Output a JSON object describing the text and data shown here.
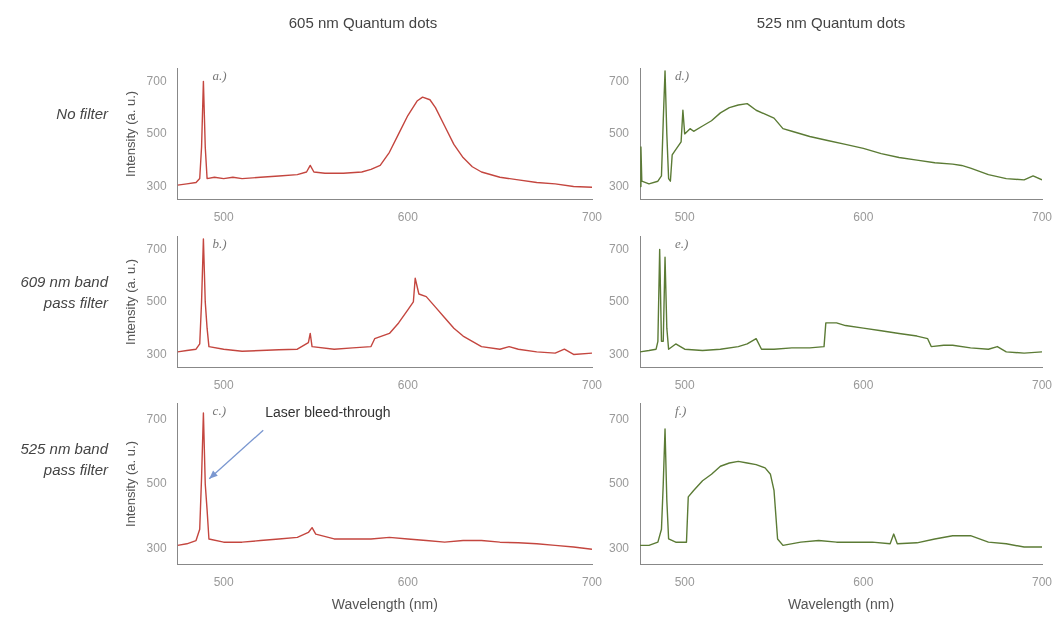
{
  "chart_data": [
    {
      "type": "line",
      "title": "605 nm Quantum dots",
      "subtitle": "No filter",
      "ylabel": "Intensity (a. u.)",
      "color": "#c4463f",
      "marker": "none",
      "grid": false,
      "legend": false,
      "annotations": [
        "a.)"
      ],
      "xlim": [
        475,
        700
      ],
      "xticks": [
        500,
        600,
        700
      ],
      "ylim": [
        250,
        750
      ],
      "yticks": [
        300,
        500,
        700
      ],
      "x": [
        475,
        480,
        485,
        487,
        488,
        489,
        490,
        491,
        495,
        500,
        505,
        510,
        520,
        530,
        540,
        545,
        547,
        549,
        555,
        565,
        575,
        580,
        585,
        590,
        595,
        600,
        605,
        608,
        612,
        615,
        620,
        625,
        630,
        635,
        640,
        650,
        660,
        670,
        680,
        690,
        700
      ],
      "values": [
        305,
        310,
        315,
        330,
        450,
        700,
        450,
        330,
        335,
        330,
        335,
        330,
        335,
        340,
        345,
        355,
        380,
        355,
        350,
        350,
        355,
        365,
        380,
        430,
        500,
        570,
        625,
        640,
        630,
        600,
        530,
        460,
        410,
        375,
        355,
        335,
        325,
        315,
        310,
        300,
        297
      ]
    },
    {
      "type": "line",
      "title": "525 nm Quantum dots",
      "color": "#5b7b35",
      "marker": "none",
      "grid": false,
      "legend": false,
      "annotations": [
        "d.)"
      ],
      "xlim": [
        475,
        700
      ],
      "xticks": [
        500,
        600,
        700
      ],
      "ylim": [
        250,
        750
      ],
      "yticks": [
        300,
        500,
        700
      ],
      "x": [
        475,
        475.5,
        476,
        480,
        485,
        487,
        488,
        489,
        490,
        491,
        492,
        493,
        495,
        498,
        499,
        500,
        503,
        505,
        510,
        515,
        520,
        525,
        530,
        535,
        540,
        545,
        550,
        555,
        560,
        570,
        580,
        590,
        600,
        610,
        620,
        630,
        640,
        650,
        655,
        660,
        670,
        680,
        690,
        695,
        700
      ],
      "values": [
        300,
        450,
        320,
        310,
        320,
        340,
        550,
        740,
        500,
        330,
        320,
        420,
        440,
        470,
        590,
        500,
        520,
        510,
        530,
        550,
        580,
        600,
        610,
        615,
        590,
        575,
        560,
        520,
        510,
        490,
        475,
        460,
        445,
        425,
        410,
        400,
        390,
        385,
        380,
        370,
        345,
        330,
        325,
        340,
        325
      ]
    },
    {
      "type": "line",
      "subtitle": "609 nm band pass filter",
      "ylabel": "Intensity (a. u.)",
      "color": "#c4463f",
      "marker": "none",
      "grid": false,
      "legend": false,
      "annotations": [
        "b.)"
      ],
      "xlim": [
        475,
        700
      ],
      "xticks": [
        500,
        600,
        700
      ],
      "ylim": [
        250,
        750
      ],
      "yticks": [
        300,
        500,
        700
      ],
      "x": [
        475,
        480,
        485,
        487,
        488,
        489,
        490,
        491,
        492,
        500,
        510,
        520,
        530,
        540,
        546,
        547,
        548,
        560,
        570,
        580,
        582,
        590,
        595,
        600,
        603,
        604,
        606,
        610,
        615,
        620,
        625,
        630,
        640,
        650,
        655,
        660,
        670,
        680,
        685,
        690,
        700
      ],
      "values": [
        310,
        315,
        320,
        340,
        500,
        740,
        500,
        400,
        330,
        320,
        312,
        315,
        318,
        320,
        345,
        380,
        330,
        320,
        325,
        330,
        360,
        380,
        420,
        470,
        500,
        590,
        530,
        520,
        480,
        440,
        400,
        370,
        330,
        320,
        330,
        320,
        310,
        305,
        320,
        300,
        305
      ]
    },
    {
      "type": "line",
      "color": "#5b7b35",
      "marker": "none",
      "grid": false,
      "legend": false,
      "annotations": [
        "e.)"
      ],
      "xlim": [
        475,
        700
      ],
      "xticks": [
        500,
        600,
        700
      ],
      "ylim": [
        250,
        750
      ],
      "yticks": [
        300,
        500,
        700
      ],
      "x": [
        475,
        480,
        484,
        485,
        486,
        487,
        488,
        489,
        490,
        491,
        495,
        500,
        510,
        520,
        530,
        535,
        540,
        543,
        550,
        560,
        570,
        578,
        579,
        585,
        590,
        600,
        610,
        620,
        630,
        636,
        638,
        645,
        650,
        660,
        670,
        675,
        680,
        690,
        700
      ],
      "values": [
        310,
        315,
        320,
        350,
        700,
        350,
        350,
        670,
        400,
        320,
        340,
        320,
        315,
        320,
        330,
        340,
        360,
        320,
        320,
        325,
        325,
        330,
        420,
        420,
        410,
        400,
        390,
        380,
        370,
        360,
        330,
        335,
        335,
        325,
        320,
        330,
        310,
        305,
        310
      ]
    },
    {
      "type": "line",
      "subtitle": "525 nm band pass filter",
      "xlabel": "Wavelength (nm)",
      "ylabel": "Intensity (a. u.)",
      "color": "#c4463f",
      "marker": "none",
      "grid": false,
      "legend": false,
      "annotations": [
        "c.)",
        {
          "text": "Laser bleed-through",
          "x": 490,
          "y": 510
        }
      ],
      "xlim": [
        475,
        700
      ],
      "xticks": [
        500,
        600,
        700
      ],
      "ylim": [
        250,
        750
      ],
      "yticks": [
        300,
        500,
        700
      ],
      "x": [
        475,
        480,
        485,
        487,
        488,
        489,
        490,
        491,
        492,
        500,
        510,
        520,
        530,
        540,
        546,
        548,
        550,
        560,
        570,
        580,
        590,
        600,
        610,
        620,
        630,
        640,
        650,
        660,
        670,
        680,
        690,
        700
      ],
      "values": [
        310,
        315,
        325,
        360,
        520,
        720,
        500,
        420,
        330,
        320,
        320,
        325,
        330,
        335,
        350,
        365,
        345,
        330,
        330,
        330,
        335,
        330,
        325,
        320,
        325,
        325,
        320,
        318,
        315,
        310,
        305,
        298
      ]
    },
    {
      "type": "line",
      "xlabel": "Wavelength (nm)",
      "color": "#5b7b35",
      "marker": "none",
      "grid": false,
      "legend": false,
      "annotations": [
        "f.)"
      ],
      "xlim": [
        475,
        700
      ],
      "xticks": [
        500,
        600,
        700
      ],
      "ylim": [
        250,
        750
      ],
      "yticks": [
        300,
        500,
        700
      ],
      "x": [
        475,
        480,
        485,
        487,
        488,
        489,
        490,
        491,
        495,
        500,
        501,
        502,
        505,
        510,
        515,
        520,
        525,
        530,
        535,
        540,
        545,
        548,
        550,
        552,
        555,
        565,
        575,
        585,
        595,
        605,
        615,
        617,
        619,
        630,
        640,
        650,
        660,
        670,
        680,
        690,
        700
      ],
      "values": [
        310,
        310,
        320,
        360,
        500,
        670,
        450,
        330,
        320,
        320,
        320,
        460,
        480,
        510,
        530,
        555,
        565,
        570,
        565,
        560,
        550,
        530,
        480,
        330,
        310,
        320,
        325,
        320,
        320,
        320,
        315,
        345,
        315,
        318,
        330,
        340,
        340,
        320,
        315,
        305,
        305
      ]
    }
  ]
}
